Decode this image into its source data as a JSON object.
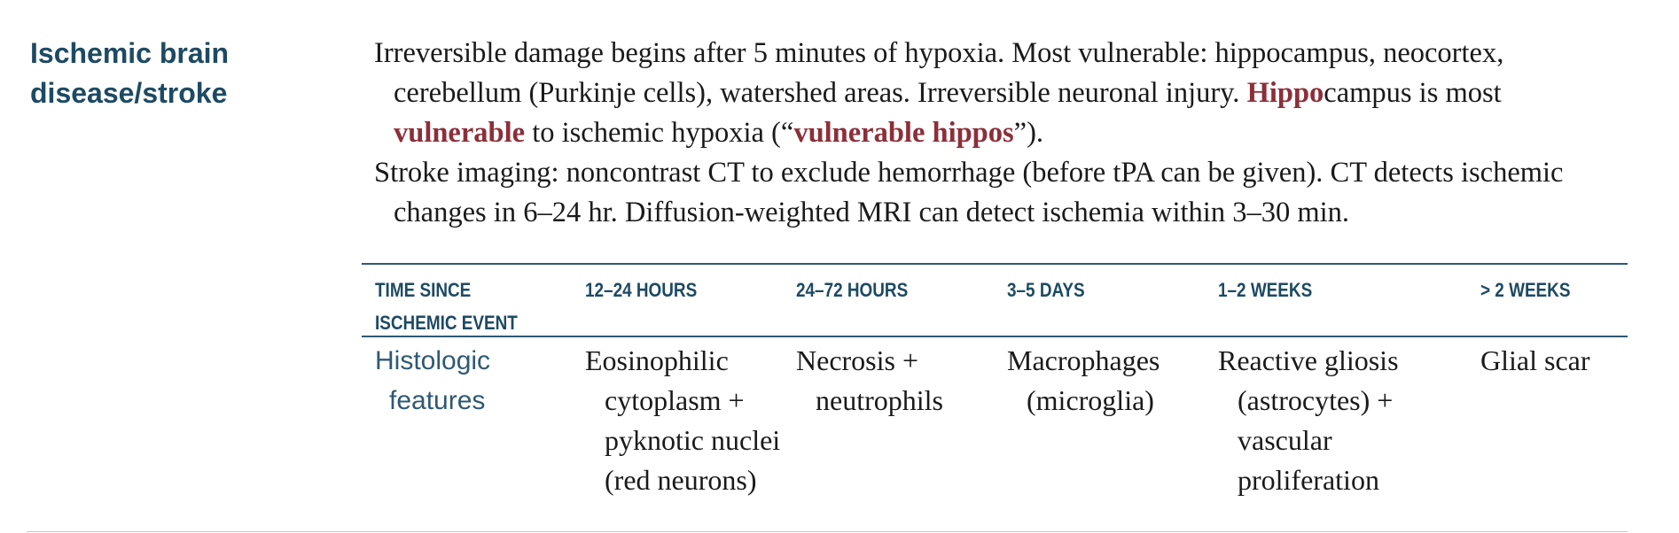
{
  "section_title": "Ischemic brain disease/stroke",
  "paragraphs": [
    {
      "segments": [
        {
          "text": "Irreversible damage begins after 5 minutes of hypoxia. Most vulnerable: hippocampus, neocortex, cerebellum (Purkinje cells), watershed areas. Irreversible neuronal injury. ",
          "highlight": false
        },
        {
          "text": "Hippo",
          "highlight": true
        },
        {
          "text": "campus is most ",
          "highlight": false
        },
        {
          "text": "vulnerable",
          "highlight": true
        },
        {
          "text": " to ischemic hypoxia (“",
          "highlight": false
        },
        {
          "text": "vulnerable hippos",
          "highlight": true
        },
        {
          "text": "”).",
          "highlight": false
        }
      ]
    },
    {
      "segments": [
        {
          "text": "Stroke imaging: noncontrast CT to exclude hemorrhage (before tPA can be given). CT detects ischemic changes in 6–24 hr. Diffusion-weighted MRI can detect ischemia within 3–30 min.",
          "highlight": false
        }
      ]
    }
  ],
  "colors": {
    "heading": "#1d4a63",
    "row_label": "#2e5973",
    "highlight": "#8c2f39",
    "rule": "#2e5973"
  },
  "table": {
    "headers": [
      "Time since ischemic event",
      "12–24 hours",
      "24–72 hours",
      "3–5 days",
      "1–2 weeks",
      "> 2 weeks"
    ],
    "row": {
      "label": "Histologic features",
      "cells": [
        "Eosinophilic cytoplasm + pyknotic nuclei (red neurons)",
        "Necrosis + neutrophils",
        "Macrophages (microglia)",
        "Reactive gliosis (astrocytes) + vascular proliferation",
        "Glial scar"
      ]
    }
  }
}
